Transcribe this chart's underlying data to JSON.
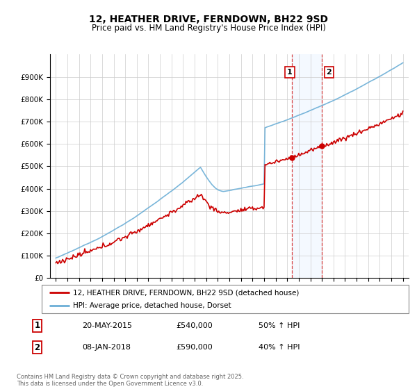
{
  "title": "12, HEATHER DRIVE, FERNDOWN, BH22 9SD",
  "subtitle": "Price paid vs. HM Land Registry's House Price Index (HPI)",
  "legend_line1": "12, HEATHER DRIVE, FERNDOWN, BH22 9SD (detached house)",
  "legend_line2": "HPI: Average price, detached house, Dorset",
  "transaction1_date": "20-MAY-2015",
  "transaction1_price": "£540,000",
  "transaction1_hpi": "50% ↑ HPI",
  "transaction1_year": 2015.38,
  "transaction1_value": 540000,
  "transaction2_date": "08-JAN-2018",
  "transaction2_price": "£590,000",
  "transaction2_hpi": "40% ↑ HPI",
  "transaction2_year": 2018.02,
  "transaction2_value": 590000,
  "hpi_color": "#6baed6",
  "price_color": "#cc0000",
  "shading_color": "#ddeeff",
  "ylim_min": 0,
  "ylim_max": 1000000,
  "yticks": [
    0,
    100000,
    200000,
    300000,
    400000,
    500000,
    600000,
    700000,
    800000,
    900000
  ],
  "ytick_labels": [
    "£0",
    "£100K",
    "£200K",
    "£300K",
    "£400K",
    "£500K",
    "£600K",
    "£700K",
    "£800K",
    "£900K"
  ],
  "xlim_min": 1994.5,
  "xlim_max": 2025.5,
  "footer": "Contains HM Land Registry data © Crown copyright and database right 2025.\nThis data is licensed under the Open Government Licence v3.0.",
  "background_color": "#ffffff",
  "grid_color": "#cccccc"
}
